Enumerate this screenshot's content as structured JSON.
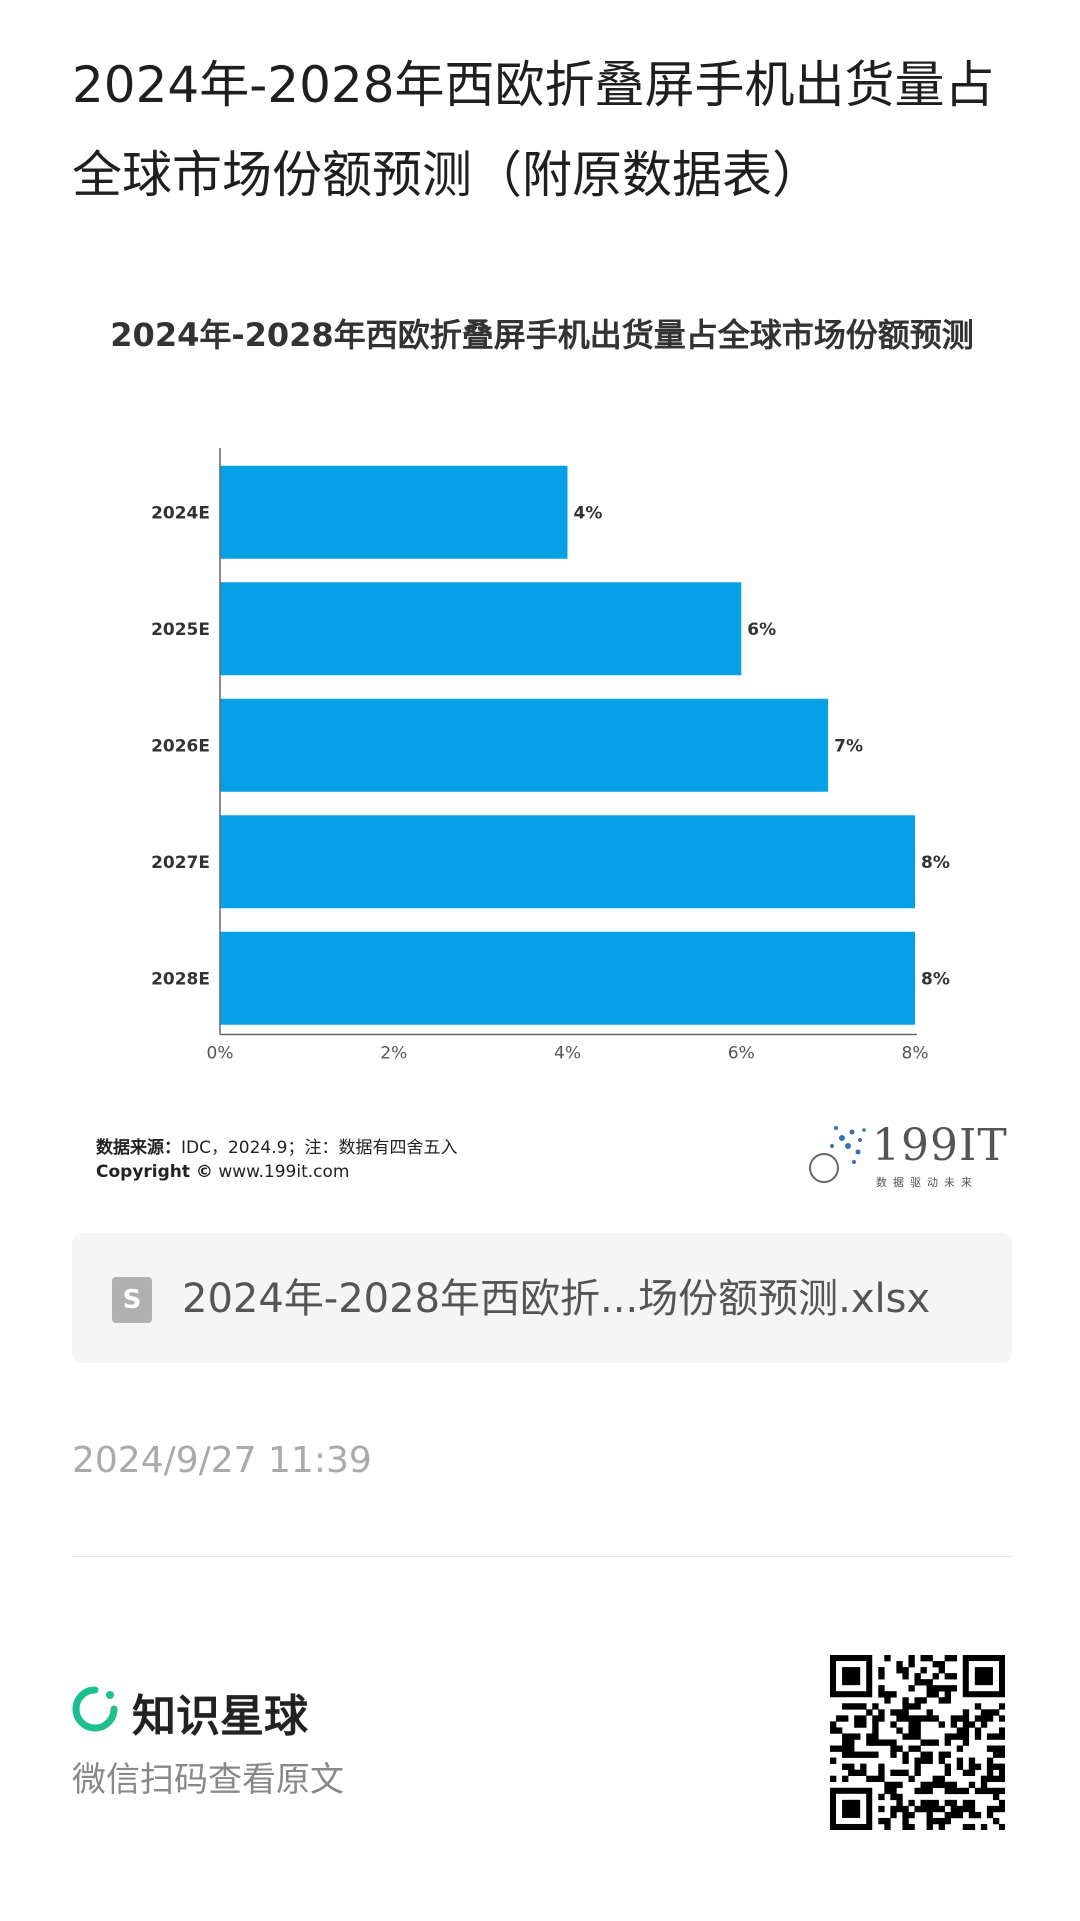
{
  "page": {
    "title": "2024年-2028年西欧折叠屏手机出货量占全球市场份额预测（附原数据表）",
    "source_label": "数据来源：",
    "source_text": "IDC，2024.9；注：数据有四舍五入",
    "copyright_label": "Copyright ©",
    "copyright_text": " www.199it.com",
    "logo_text": "199IT",
    "logo_sub": "数据驱动未来",
    "file_name": "2024年-2028年西欧折...场份额预测.xlsx",
    "file_icon": "S",
    "timestamp": "2024/9/27 11:39",
    "brand_name": "知识星球",
    "scan_text": "微信扫码查看原文"
  },
  "colors": {
    "bar": "#05a0e6",
    "brand_green": "#1dbf8f"
  },
  "icons": {
    "file": "spreadsheet-file-icon",
    "brand": "knowledge-planet-logo-icon",
    "qr": "qr-code-icon"
  },
  "chart_data": {
    "type": "bar",
    "orientation": "horizontal",
    "title": "2024年-2028年西欧折叠屏手机出货量占全球市场份额预测",
    "categories": [
      "2024E",
      "2025E",
      "2026E",
      "2027E",
      "2028E"
    ],
    "values": [
      4,
      6,
      7,
      8,
      8
    ],
    "data_labels": [
      "4%",
      "6%",
      "7%",
      "8%",
      "8%"
    ],
    "xlim": [
      0,
      8
    ],
    "x_ticks": [
      0,
      2,
      4,
      6,
      8
    ],
    "x_tick_labels": [
      "0%",
      "2%",
      "4%",
      "6%",
      "8%"
    ],
    "grid": false,
    "legend": "none"
  }
}
